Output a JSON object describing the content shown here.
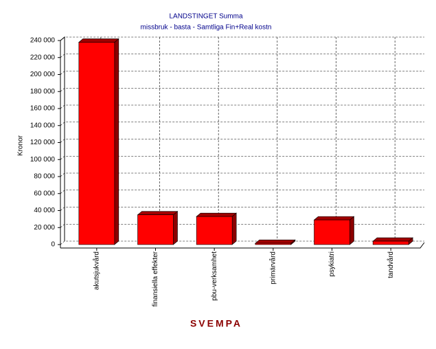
{
  "chart_data": {
    "type": "bar3d",
    "title": "LANDSTINGET  Summa",
    "subtitle": "missbruk - basta - Samtliga Fin+Real kostn",
    "y_label": "Kronor",
    "x_label": "SVEMPA",
    "categories": [
      "akutsjukvård",
      "finansiella effekter",
      "pbu-verksamhet",
      "primärvård",
      "psykiatri",
      "tandvård"
    ],
    "values": [
      238000,
      35000,
      33000,
      1500,
      29000,
      4000
    ],
    "color": "#ff0000",
    "ylim": [
      0,
      240000
    ],
    "yticks": [
      0,
      {
        "value": 20000,
        "label": "20 000"
      },
      {
        "value": 40000,
        "label": "40 000"
      },
      {
        "value": 60000,
        "label": "60 000"
      },
      {
        "value": 80000,
        "label": "80 000"
      },
      {
        "value": 100000,
        "label": "100 000"
      },
      {
        "value": 120000,
        "label": "120 000"
      },
      {
        "value": 140000,
        "label": "140 000"
      },
      {
        "value": 160000,
        "label": "160 000"
      },
      {
        "value": 180000,
        "label": "180 000"
      },
      {
        "value": 200000,
        "label": "200 000"
      },
      {
        "value": 220000,
        "label": "220 000"
      },
      {
        "value": 240000,
        "label": "240 000"
      }
    ],
    "grid": true
  }
}
